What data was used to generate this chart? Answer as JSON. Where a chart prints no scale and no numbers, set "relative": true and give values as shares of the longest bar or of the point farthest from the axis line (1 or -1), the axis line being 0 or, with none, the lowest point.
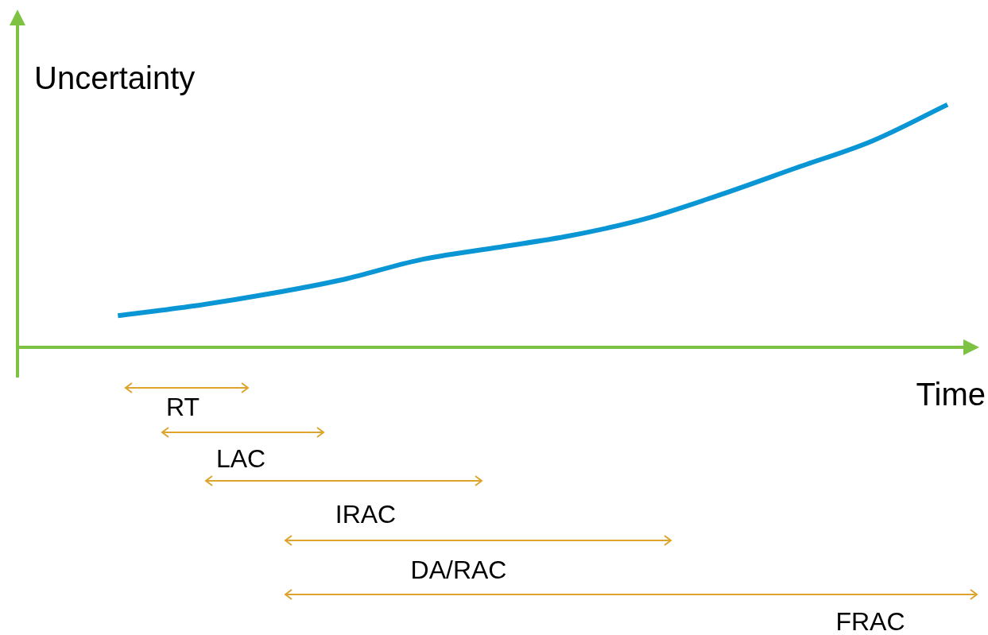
{
  "chart_data": {
    "type": "line",
    "relative": true,
    "ylabel": "Uncertainty",
    "xlabel": "Time",
    "categories": [
      null,
      null,
      null,
      null,
      null,
      null,
      null,
      null,
      null,
      null,
      null,
      null
    ],
    "series": [
      {
        "color": "#0a96d4",
        "values": [
          0.13,
          0.17,
          0.22,
          0.28,
          0.36,
          0.41,
          0.46,
          0.53,
          0.63,
          0.74,
          0.85,
          1
        ]
      }
    ],
    "annotations": [
      "RT",
      "LAC",
      "IRAC",
      "DA/RAC",
      "FRAC"
    ]
  }
}
